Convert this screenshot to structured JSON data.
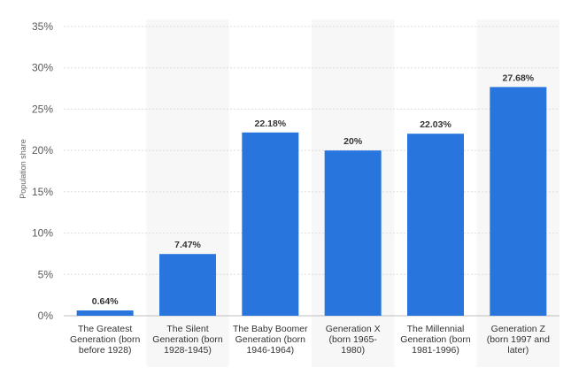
{
  "chart_data": {
    "type": "bar",
    "title": "",
    "xlabel": "",
    "ylabel": "Population share",
    "ylim": [
      0,
      35
    ],
    "yticks": [
      0,
      5,
      10,
      15,
      20,
      25,
      30,
      35
    ],
    "ytick_labels": [
      "0%",
      "5%",
      "10%",
      "15%",
      "20%",
      "25%",
      "30%",
      "35%"
    ],
    "grid": true,
    "bar_color": "#2876dd",
    "categories": [
      [
        "The Greatest",
        "Generation (born",
        "before 1928)"
      ],
      [
        "The Silent",
        "Generation (born",
        "1928-1945)"
      ],
      [
        "The Baby Boomer",
        "Generation (born",
        "1946-1964)"
      ],
      [
        "Generation X",
        "(born 1965-",
        "1980)"
      ],
      [
        "The Millennial",
        "Generation (born",
        "1981-1996)"
      ],
      [
        "Generation Z",
        "(born 1997 and",
        "later)"
      ]
    ],
    "values": [
      0.64,
      7.47,
      22.18,
      20,
      22.03,
      27.68
    ],
    "value_labels": [
      "0.64%",
      "7.47%",
      "22.18%",
      "20%",
      "22.03%",
      "27.68%"
    ]
  }
}
